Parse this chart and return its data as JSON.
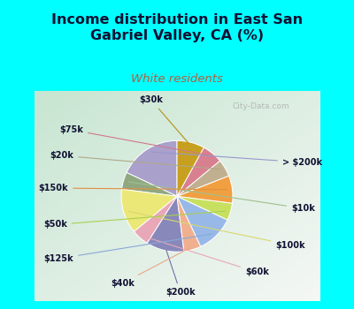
{
  "title_line1": "Income distribution in East San",
  "title_line2": "Gabriel Valley, CA (%)",
  "subtitle": "White residents",
  "title_color": "#111133",
  "subtitle_color": "#b06040",
  "bg_cyan": "#00ffff",
  "bg_chart_tl": "#e8f8f0",
  "bg_chart_br": "#f8fcfa",
  "watermark": "City-Data.com",
  "labels": [
    "> $200k",
    "$10k",
    "$100k",
    "$60k",
    "$200k",
    "$40k",
    "$125k",
    "$50k",
    "$150k",
    "$20k",
    "$75k",
    "$30k"
  ],
  "values": [
    18,
    5,
    13,
    5,
    11,
    5,
    11,
    5,
    8,
    5,
    6,
    8
  ],
  "colors": [
    "#aaa0cc",
    "#90a880",
    "#ece878",
    "#e8a8b8",
    "#8888bb",
    "#f0b090",
    "#98b8e8",
    "#c8e060",
    "#f0a040",
    "#c0b090",
    "#d88090",
    "#c8a020"
  ],
  "startangle": 90,
  "label_fontsize": 7.0,
  "title_fontsize": 11.5,
  "subtitle_fontsize": 9.5
}
